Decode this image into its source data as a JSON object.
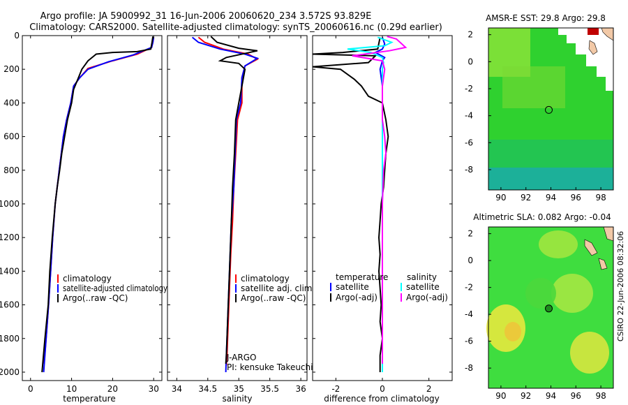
{
  "figure": {
    "title_line1": "Argo profile: JA 5900992_31 16-Jun-2006 20060620_234 3.572S 93.829E",
    "title_line2": "Climatology: CARS2000. Satellite-adjusted climatology: synTS_20060616.nc (0.29d earlier)",
    "footer": "CSIRO 22-Jun-2006 08:32:06"
  },
  "colors": {
    "red": "#ff0000",
    "blue": "#0000ff",
    "black": "#000000",
    "cyan": "#00ffff",
    "magenta": "#ff00ff",
    "land": "#f2c9a7",
    "sst_base": "#2fd12f",
    "sla_base": "#3fdd3f"
  },
  "chart_data": [
    {
      "type": "line",
      "name": "temperature-profile",
      "xlabel": "temperature",
      "xlim": [
        -2,
        32
      ],
      "xticks": [
        0,
        10,
        20,
        30
      ],
      "ylim": [
        2050,
        0
      ],
      "yticks": [
        0,
        200,
        400,
        600,
        800,
        1000,
        1200,
        1400,
        1600,
        1800,
        2000
      ],
      "legend": {
        "position": "lower-right",
        "items": [
          "climatology",
          "satellite-adjusted climatology",
          "Argo(..raw -QC)"
        ]
      },
      "series": [
        {
          "name": "climatology",
          "color": "red",
          "points": [
            [
              30,
              10
            ],
            [
              29.8,
              40
            ],
            [
              29.5,
              70
            ],
            [
              26,
              110
            ],
            [
              20,
              150
            ],
            [
              14,
              195
            ],
            [
              12,
              250
            ],
            [
              10.5,
              300
            ],
            [
              9.8,
              400
            ],
            [
              8.8,
              500
            ],
            [
              8,
              600
            ],
            [
              7.5,
              700
            ],
            [
              7,
              800
            ],
            [
              6.5,
              900
            ],
            [
              6,
              1000
            ],
            [
              5.4,
              1200
            ],
            [
              4.9,
              1400
            ],
            [
              4.4,
              1600
            ],
            [
              3.8,
              1800
            ],
            [
              3.3,
              1950
            ]
          ]
        },
        {
          "name": "satellite-adjusted climatology",
          "color": "blue",
          "points": [
            [
              30,
              10
            ],
            [
              29.8,
              40
            ],
            [
              29.5,
              70
            ],
            [
              25,
              115
            ],
            [
              19,
              155
            ],
            [
              14,
              200
            ],
            [
              12,
              250
            ],
            [
              10.5,
              300
            ],
            [
              9.8,
              400
            ],
            [
              8.8,
              500
            ],
            [
              8,
              600
            ],
            [
              7.5,
              700
            ],
            [
              7,
              800
            ],
            [
              6.5,
              900
            ],
            [
              6,
              1000
            ],
            [
              5.4,
              1200
            ],
            [
              4.9,
              1400
            ],
            [
              4.4,
              1600
            ],
            [
              3.8,
              1800
            ],
            [
              3.2,
              2000
            ]
          ]
        },
        {
          "name": "Argo(..raw -QC)",
          "color": "black",
          "points": [
            [
              29.8,
              5
            ],
            [
              29.6,
              40
            ],
            [
              29.3,
              80
            ],
            [
              26,
              95
            ],
            [
              20,
              100
            ],
            [
              16,
              110
            ],
            [
              14,
              150
            ],
            [
              12.5,
              200
            ],
            [
              11.5,
              260
            ],
            [
              10.5,
              320
            ],
            [
              10,
              400
            ],
            [
              9,
              500
            ],
            [
              8.3,
              600
            ],
            [
              7.6,
              700
            ],
            [
              7.1,
              800
            ],
            [
              6.5,
              900
            ],
            [
              6,
              1000
            ],
            [
              5.3,
              1200
            ],
            [
              4.7,
              1400
            ],
            [
              4.3,
              1600
            ],
            [
              3.5,
              1800
            ],
            [
              2.8,
              2000
            ]
          ]
        }
      ]
    },
    {
      "type": "line",
      "name": "salinity-profile",
      "xlabel": "salinity",
      "xlim": [
        33.85,
        36.1
      ],
      "xticks": [
        34,
        34.5,
        35,
        35.5,
        36
      ],
      "ylim": [
        2050,
        0
      ],
      "yticks": [
        0,
        200,
        400,
        600,
        800,
        1000,
        1200,
        1400,
        1600,
        1800,
        2000
      ],
      "legend": {
        "position": "lower-right",
        "items": [
          "climatology",
          "satellite adj. clim.",
          "Argo(..raw -QC)"
        ]
      },
      "annotation": [
        "J-ARGO",
        "PI: kensuke Takeuchi"
      ],
      "series": [
        {
          "name": "climatology",
          "color": "red",
          "points": [
            [
              34.35,
              10
            ],
            [
              34.45,
              40
            ],
            [
              34.75,
              80
            ],
            [
              35.15,
              110
            ],
            [
              35.3,
              140
            ],
            [
              35.1,
              180
            ],
            [
              35.05,
              250
            ],
            [
              35.05,
              400
            ],
            [
              34.98,
              500
            ],
            [
              34.95,
              700
            ],
            [
              34.92,
              900
            ],
            [
              34.9,
              1100
            ],
            [
              34.87,
              1300
            ],
            [
              34.85,
              1500
            ],
            [
              34.83,
              1700
            ],
            [
              34.81,
              1900
            ],
            [
              34.8,
              1960
            ]
          ]
        },
        {
          "name": "satellite adj. clim.",
          "color": "blue",
          "points": [
            [
              34.25,
              10
            ],
            [
              34.35,
              40
            ],
            [
              34.7,
              80
            ],
            [
              35.1,
              110
            ],
            [
              35.3,
              135
            ],
            [
              35.1,
              180
            ],
            [
              35.05,
              250
            ],
            [
              35.03,
              400
            ],
            [
              34.96,
              500
            ],
            [
              34.94,
              700
            ],
            [
              34.92,
              900
            ],
            [
              34.88,
              1100
            ],
            [
              34.86,
              1300
            ],
            [
              34.84,
              1500
            ],
            [
              34.82,
              1700
            ],
            [
              34.8,
              1900
            ],
            [
              34.79,
              2000
            ]
          ]
        },
        {
          "name": "Argo(..raw -QC)",
          "color": "black",
          "points": [
            [
              34.55,
              5
            ],
            [
              34.65,
              40
            ],
            [
              35.0,
              75
            ],
            [
              35.3,
              90
            ],
            [
              34.8,
              130
            ],
            [
              34.7,
              150
            ],
            [
              35.0,
              165
            ],
            [
              35.1,
              200
            ],
            [
              35.05,
              300
            ],
            [
              35.0,
              400
            ],
            [
              34.95,
              500
            ],
            [
              34.93,
              700
            ],
            [
              34.9,
              900
            ],
            [
              34.88,
              1100
            ],
            [
              34.86,
              1300
            ],
            [
              34.84,
              1500
            ],
            [
              34.82,
              1700
            ],
            [
              34.8,
              1900
            ],
            [
              34.79,
              1950
            ]
          ]
        }
      ]
    },
    {
      "type": "line",
      "name": "difference-profile",
      "xlabel": "difference from climatology",
      "xlim": [
        -3.0,
        3.0
      ],
      "xticks": [
        -2,
        0,
        2
      ],
      "ylim": [
        2050,
        0
      ],
      "yticks": [
        0,
        200,
        400,
        600,
        800,
        1000,
        1200,
        1400,
        1600,
        1800,
        2000
      ],
      "legend": {
        "position": "lower-center",
        "headers": [
          "temperature",
          "salinity"
        ],
        "items": [
          "satellite",
          "Argo(-adj)",
          "satellite",
          "Argo(-adj)"
        ]
      },
      "series": [
        {
          "name": "temperature satellite",
          "color": "blue",
          "points": [
            [
              0,
              10
            ],
            [
              0.1,
              50
            ],
            [
              0,
              80
            ],
            [
              -0.3,
              100
            ],
            [
              0.1,
              130
            ],
            [
              0,
              150
            ],
            [
              -0.1,
              200
            ],
            [
              0,
              300
            ],
            [
              0,
              500
            ],
            [
              0,
              1000
            ],
            [
              0,
              1500
            ],
            [
              0,
              2000
            ]
          ]
        },
        {
          "name": "temperature Argo(-adj)",
          "color": "black",
          "points": [
            [
              -0.1,
              10
            ],
            [
              -0.2,
              80
            ],
            [
              -1.7,
              100
            ],
            [
              -3.0,
              110
            ],
            [
              -0.3,
              120
            ],
            [
              -0.6,
              160
            ],
            [
              -3.0,
              185
            ],
            [
              -1.8,
              200
            ],
            [
              -1.2,
              260
            ],
            [
              -0.9,
              300
            ],
            [
              -0.6,
              360
            ],
            [
              0,
              400
            ],
            [
              0.15,
              500
            ],
            [
              0.25,
              600
            ],
            [
              0.15,
              700
            ],
            [
              0.1,
              800
            ],
            [
              0.05,
              900
            ],
            [
              -0.05,
              1000
            ],
            [
              -0.1,
              1100
            ],
            [
              -0.15,
              1200
            ],
            [
              -0.1,
              1300
            ],
            [
              -0.15,
              1400
            ],
            [
              -0.1,
              1500
            ],
            [
              -0.05,
              1600
            ],
            [
              -0.1,
              1700
            ],
            [
              0,
              1800
            ],
            [
              -0.1,
              1900
            ],
            [
              -0.1,
              2000
            ]
          ]
        },
        {
          "name": "salinity satellite",
          "color": "cyan",
          "points": [
            [
              -0.2,
              10
            ],
            [
              0.4,
              40
            ],
            [
              0.1,
              60
            ],
            [
              -1.5,
              80
            ],
            [
              -0.5,
              100
            ],
            [
              0,
              130
            ],
            [
              0.05,
              160
            ],
            [
              0,
              200
            ],
            [
              0,
              400
            ],
            [
              0,
              800
            ],
            [
              0,
              1200
            ],
            [
              0,
              1600
            ],
            [
              0,
              2000
            ]
          ]
        },
        {
          "name": "salinity Argo(-adj)",
          "color": "magenta",
          "points": [
            [
              0.2,
              5
            ],
            [
              0.6,
              20
            ],
            [
              1.0,
              70
            ],
            [
              0.3,
              90
            ],
            [
              -1.3,
              120
            ],
            [
              0,
              150
            ],
            [
              0.1,
              200
            ],
            [
              0,
              300
            ],
            [
              0,
              500
            ],
            [
              0.1,
              600
            ],
            [
              0.15,
              700
            ],
            [
              0.05,
              800
            ],
            [
              0,
              1000
            ],
            [
              0,
              1400
            ],
            [
              0,
              1800
            ],
            [
              0,
              1950
            ]
          ]
        }
      ]
    },
    {
      "type": "heatmap",
      "name": "sst-map",
      "title": "AMSR-E SST: 29.8 Argo: 29.8",
      "xlim": [
        89,
        99
      ],
      "ylim": [
        -9.5,
        2.5
      ],
      "xticks": [
        90,
        92,
        94,
        96,
        98
      ],
      "yticks": [
        2,
        0,
        -2,
        -4,
        -6,
        -8
      ],
      "marker": {
        "lon": 93.83,
        "lat": -3.57
      }
    },
    {
      "type": "heatmap",
      "name": "sla-map",
      "title": "Altimetric SLA: 0.082 Argo: -0.04",
      "xlim": [
        89,
        99
      ],
      "ylim": [
        -9.5,
        2.5
      ],
      "xticks": [
        90,
        92,
        94,
        96,
        98
      ],
      "yticks": [
        2,
        0,
        -2,
        -4,
        -6,
        -8
      ],
      "marker": {
        "lon": 93.83,
        "lat": -3.57
      }
    }
  ]
}
